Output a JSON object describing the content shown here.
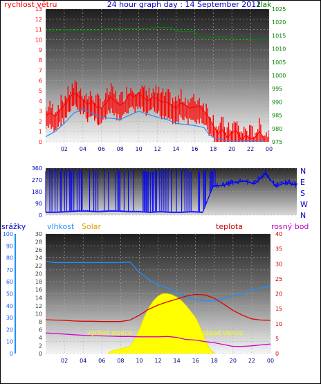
{
  "header": {
    "left_label": "rychlost větru",
    "title": "24 hour graph day : 14 September 2012",
    "right_label": "tlak"
  },
  "colors": {
    "wind": "#ff0000",
    "wind_avg": "#1e90ff",
    "pressure": "#008000",
    "direction": "#0000ff",
    "humidity": "#1e90ff",
    "solar": "#ffff00",
    "temperature": "#e00000",
    "dewpoint": "#d000d0",
    "rain": "#0000c0",
    "axis_blue": "#0000ff",
    "axis_red": "#c80000",
    "axis_green": "#008000"
  },
  "chart_data": [
    {
      "type": "line",
      "title": "24 hour graph day : 14 September 2012",
      "x_ticks": [
        "02",
        "04",
        "06",
        "08",
        "10",
        "12",
        "14",
        "16",
        "18",
        "20",
        "22",
        "00"
      ],
      "y_left_label": "rychlost větru",
      "y_left_ticks": [
        "0",
        "1",
        "2",
        "3",
        "4",
        "5",
        "6",
        "7",
        "8",
        "9",
        "10",
        "11",
        "12",
        "13"
      ],
      "y_left_range": [
        0,
        13
      ],
      "y_right_label": "tlak",
      "y_right_ticks": [
        "975",
        "980",
        "985",
        "990",
        "995",
        "1000",
        "1005",
        "1010",
        "1015",
        "1020",
        "1025"
      ],
      "y_right_range": [
        975,
        1025
      ],
      "grid": true,
      "series": [
        {
          "name": "rychlost větru",
          "x": [
            0,
            0.5,
            1,
            1.5,
            2,
            2.5,
            3,
            3.5,
            4,
            4.5,
            5,
            5.5,
            6,
            6.5,
            7,
            7.5,
            8,
            8.5,
            9,
            9.5,
            10,
            10.5,
            11,
            11.5,
            12,
            12.5,
            13,
            13.5,
            14,
            14.5,
            15,
            15.5,
            16,
            16.5,
            17,
            17.5,
            18,
            18.5,
            19,
            19.5,
            20,
            20.5,
            21,
            21.5,
            22,
            22.5,
            23,
            23.5
          ],
          "values": [
            2.6,
            2.8,
            2.5,
            3.1,
            3.6,
            4.2,
            4.8,
            4.5,
            4.1,
            3.7,
            3.9,
            3.4,
            3.3,
            3.8,
            4.4,
            3.9,
            3.6,
            3.9,
            4.7,
            4.4,
            4.8,
            4.3,
            4.0,
            4.4,
            4.2,
            3.9,
            3.9,
            3.6,
            3.3,
            3.8,
            3.6,
            3.3,
            3.4,
            3.5,
            3.0,
            2.4,
            1.6,
            0.8,
            1.2,
            0.4,
            0.9,
            1.1,
            0.2,
            0.6,
            0.3,
            0.4,
            1.0,
            0.2
          ]
        },
        {
          "name": "průměr větru",
          "x": [
            0,
            1,
            2,
            3,
            4,
            5,
            6,
            7,
            8,
            9,
            10,
            11,
            12,
            13,
            14,
            15,
            16,
            17,
            17.5,
            18,
            19,
            20,
            21,
            22,
            23,
            23.5
          ],
          "values": [
            0.5,
            1.0,
            1.8,
            2.8,
            3.2,
            2.8,
            2.4,
            2.3,
            2.2,
            2.6,
            3.0,
            2.7,
            2.4,
            2.2,
            1.8,
            1.7,
            1.6,
            1.4,
            0.8,
            0.4,
            0.2,
            0.1,
            0.1,
            0.1,
            0.1,
            0
          ]
        },
        {
          "name": "tlak",
          "x": [
            0,
            1,
            2,
            2.5,
            6,
            6.5,
            11,
            11.5,
            13.5,
            14,
            16,
            16.5,
            19,
            19.5,
            22,
            22.5,
            24
          ],
          "values": [
            1016.7,
            1016.7,
            1017.3,
            1017.0,
            1017.0,
            1017.6,
            1017.6,
            1018.0,
            1018.0,
            1016.5,
            1016.5,
            1014.5,
            1014.5,
            1013.7,
            1013.7,
            1013.5,
            1013.5
          ]
        }
      ]
    },
    {
      "type": "line",
      "y_left_ticks": [
        "0",
        "90",
        "180",
        "270",
        "360"
      ],
      "y_left_range": [
        0,
        360
      ],
      "y_right_ticks": [
        "N",
        "W",
        "S",
        "E",
        "N"
      ],
      "series": [
        {
          "name": "směr větru",
          "x": [
            0,
            1,
            2,
            3,
            4,
            5,
            6,
            7,
            8,
            9,
            10,
            11,
            12,
            13,
            14,
            15,
            16,
            17,
            17.5,
            18,
            19,
            20,
            21,
            22,
            23,
            24
          ],
          "values": [
            20,
            20,
            25,
            30,
            30,
            25,
            30,
            30,
            25,
            25,
            20,
            25,
            20,
            20,
            25,
            20,
            220,
            230,
            240,
            250,
            260,
            240,
            320,
            220,
            250,
            230
          ]
        }
      ]
    },
    {
      "type": "line",
      "x_ticks": [
        "02",
        "04",
        "06",
        "08",
        "10",
        "12",
        "14",
        "16",
        "18",
        "20",
        "22",
        "00"
      ],
      "axis_labels": {
        "rain": "srážky",
        "humidity": "vlhkost",
        "solar": "Solar",
        "temperature": "teplota",
        "dewpoint": "rosný bod"
      },
      "y_rain_ticks": [
        "0",
        "10",
        "20",
        "30",
        "40",
        "50",
        "60",
        "70",
        "80",
        "90",
        "100"
      ],
      "y_humidity_ticks": [
        "0",
        "2",
        "4",
        "6",
        "8",
        "10",
        "12",
        "14",
        "16",
        "18",
        "20",
        "22",
        "24",
        "26",
        "28",
        "30"
      ],
      "y_temperature_ticks": [
        "0",
        "5",
        "10",
        "15",
        "20",
        "25",
        "30",
        "35",
        "40"
      ],
      "y_rain_range": [
        0,
        100
      ],
      "y_temperature_range": [
        0,
        40
      ],
      "annotations": [
        "východ slunce",
        "západ slunce"
      ],
      "grid": true,
      "series": [
        {
          "name": "vlhkost",
          "x": [
            0,
            1,
            2,
            3,
            4,
            5,
            6,
            7,
            8,
            9,
            10,
            11,
            12,
            13,
            14,
            15,
            16,
            17,
            18,
            19,
            20,
            21,
            22,
            23,
            24
          ],
          "values": [
            77,
            76,
            76,
            76,
            76,
            76,
            76,
            76,
            76,
            76.5,
            68,
            62,
            57,
            55,
            51,
            47,
            45,
            44,
            44,
            46,
            48,
            50,
            53,
            55,
            56
          ]
        },
        {
          "name": "Solar",
          "x": [
            6.6,
            7,
            8,
            9,
            9.5,
            10,
            10.5,
            11,
            11.5,
            12,
            12.5,
            13,
            13.5,
            14,
            14.5,
            15,
            15.5,
            16,
            16.5,
            17,
            17.5,
            18
          ],
          "values": [
            0,
            2,
            4,
            6,
            12,
            20,
            30,
            38,
            44,
            48,
            50,
            50,
            49,
            47,
            44,
            40,
            35,
            30,
            22,
            12,
            4,
            0
          ]
        },
        {
          "name": "teplota",
          "x": [
            0,
            1,
            2,
            3,
            4,
            5,
            6,
            7,
            8,
            9,
            10,
            11,
            12,
            13,
            14,
            15,
            16,
            17,
            18,
            19,
            20,
            21,
            22,
            23,
            24
          ],
          "values": [
            11.3,
            11.2,
            11.1,
            10.9,
            10.8,
            10.8,
            10.7,
            10.7,
            10.7,
            11.2,
            12.8,
            14.8,
            16.2,
            17.3,
            18.2,
            19.2,
            19.8,
            19.6,
            18.5,
            16.5,
            14.4,
            12.8,
            11.6,
            11.2,
            11.1
          ]
        },
        {
          "name": "rosný bod",
          "x": [
            0,
            1,
            2,
            3,
            4,
            5,
            6,
            7,
            8,
            9,
            10,
            11,
            12,
            13,
            14,
            15,
            16,
            17,
            18,
            19,
            20,
            21,
            22,
            23,
            24
          ],
          "values": [
            6.9,
            6.7,
            6.5,
            6.3,
            6.1,
            6.0,
            5.9,
            5.8,
            5.7,
            5.7,
            5.6,
            5.6,
            5.6,
            5.7,
            5.4,
            4.7,
            4.5,
            4.0,
            3.6,
            3.0,
            2.4,
            2.4,
            2.6,
            2.9,
            3.2
          ]
        }
      ]
    }
  ]
}
